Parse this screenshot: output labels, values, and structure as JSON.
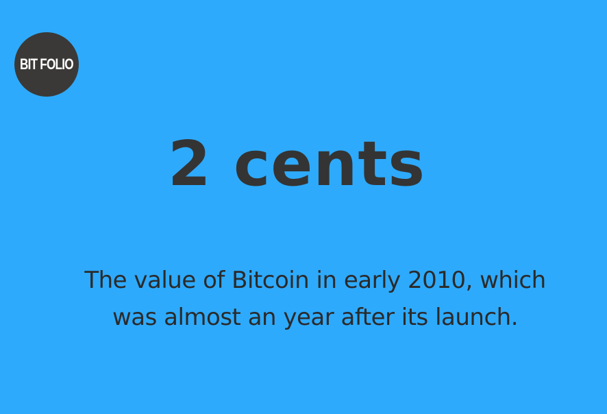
{
  "logo": {
    "text": "BIT FOLIO"
  },
  "headline": "2 cents",
  "caption": {
    "line1": "The value of Bitcoin in early 2010, which",
    "line2": "was almost an year after its launch."
  },
  "colors": {
    "background": "#2eaafc",
    "logo_circle": "#3a3937",
    "logo_text": "#ffffff",
    "headline_text": "#343434",
    "caption_text": "#2a2a2a"
  }
}
